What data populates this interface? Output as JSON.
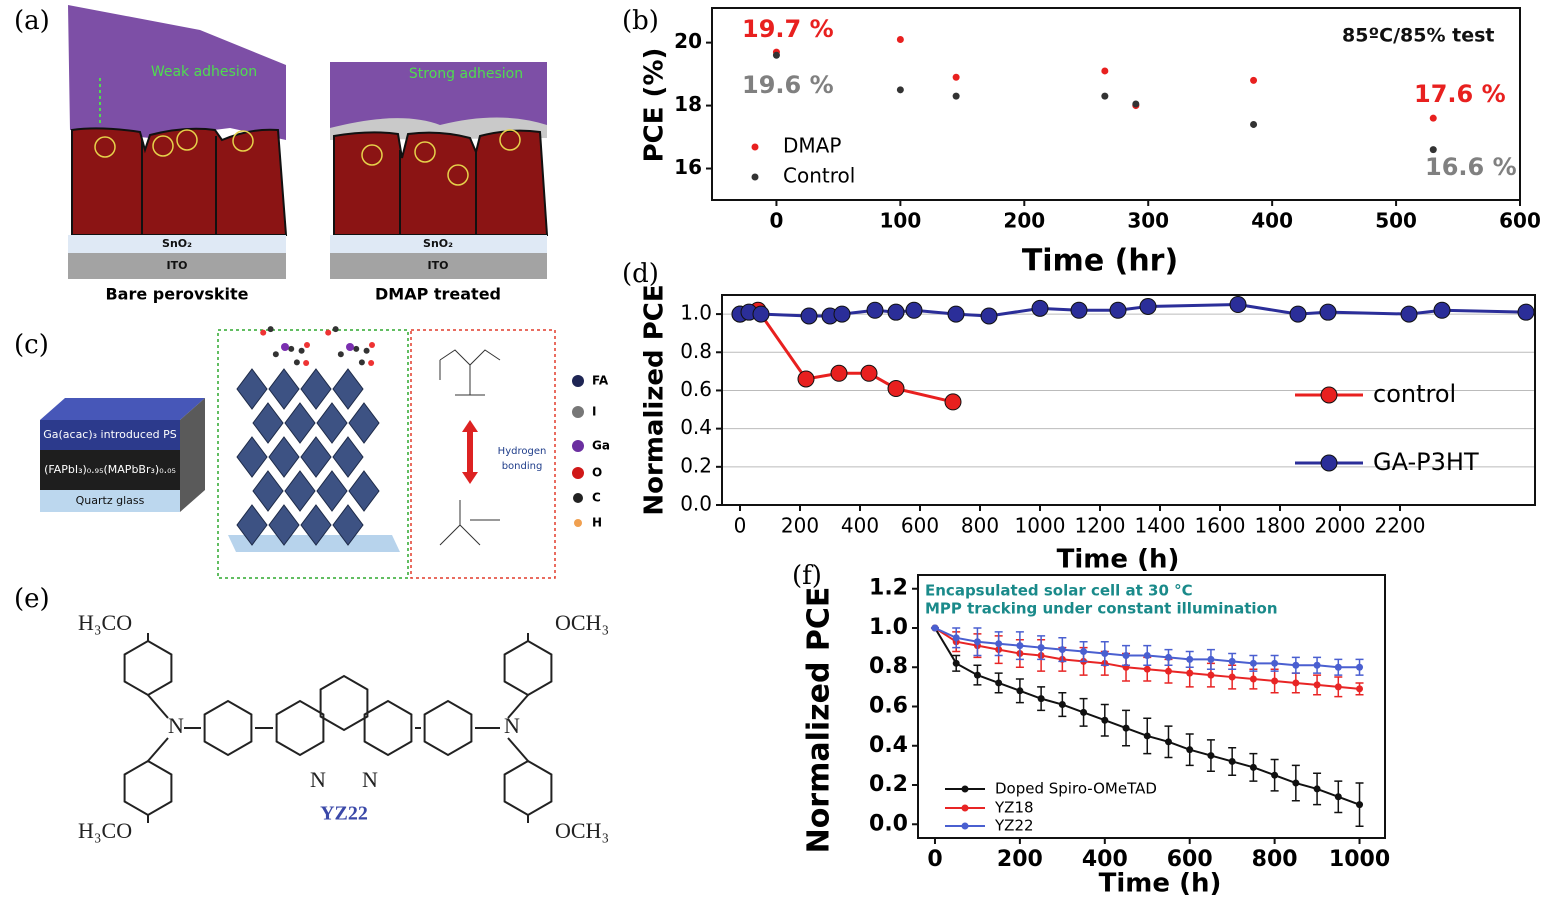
{
  "panel_labels": [
    "(a)",
    "(b)",
    "(c)",
    "(d)",
    "(e)",
    "(f)"
  ],
  "panel_a": {
    "weak": "Weak adhesion",
    "strong": "Strong adhesion",
    "sno2": "SnO₂",
    "ito": "ITO",
    "left_caption": "Bare perovskite",
    "right_caption": "DMAP treated"
  },
  "panel_c": {
    "layers": [
      "Ga(acac)₃ introduced PS",
      "(FAPbI₃)₀.₉₅(MAPbBr₃)₀.₀₅",
      "Quartz glass"
    ],
    "legend": [
      "FA",
      "I",
      "Ga",
      "O",
      "C",
      "H"
    ],
    "bond": [
      "Hydrogen",
      "bonding"
    ]
  },
  "panel_e": {
    "groups": [
      "H₃CO",
      "H₃CO",
      "OCH₃",
      "OCH₃"
    ],
    "n_atoms": [
      "N",
      "N",
      "N",
      "N"
    ],
    "name": "YZ22"
  },
  "chart_data": [
    {
      "type": "scatter",
      "x_label": "Time (hr)",
      "y_label": "PCE (%)",
      "x": [
        0,
        100,
        145,
        265,
        290,
        385,
        530
      ],
      "series": [
        {
          "name": "DMAP",
          "color": "#e8201f",
          "values": [
            19.7,
            20.1,
            18.9,
            19.1,
            18.0,
            18.8,
            17.6
          ]
        },
        {
          "name": "Control",
          "color": "#333333",
          "values": [
            19.6,
            18.5,
            18.3,
            18.3,
            18.05,
            17.4,
            16.6
          ]
        }
      ],
      "xlim": [
        -52,
        600
      ],
      "xticks": [
        0,
        100,
        200,
        300,
        400,
        500,
        600
      ],
      "ylim": [
        15,
        21.1
      ],
      "yticks": [
        16,
        18,
        20
      ],
      "grid": false,
      "legend": "lower-left",
      "annotations": [
        {
          "text": "19.7 %",
          "color": "#e8201f"
        },
        {
          "text": "19.6 %",
          "color": "#808080"
        },
        {
          "text": "17.6 %",
          "color": "#e8201f"
        },
        {
          "text": "16.6 %",
          "color": "#808080"
        },
        {
          "text": "85ºC/85%  test",
          "color": "#111111"
        }
      ]
    },
    {
      "type": "line",
      "x_label": "Time (h)",
      "y_label": "Normalized PCE",
      "series": [
        {
          "name": "control",
          "color": "#e8201f",
          "x": [
            0,
            60,
            220,
            330,
            430,
            520,
            710
          ],
          "values": [
            1.0,
            1.02,
            0.66,
            0.69,
            0.69,
            0.61,
            0.54
          ]
        },
        {
          "name": "GA-P3HT",
          "color": "#2b2e99",
          "x": [
            0,
            30,
            70,
            230,
            300,
            340,
            450,
            520,
            580,
            720,
            830,
            1000,
            1130,
            1260,
            1360,
            1660,
            1860,
            1960,
            2230,
            2340,
            2620
          ],
          "values": [
            1.0,
            1.01,
            1.0,
            0.99,
            0.99,
            1.0,
            1.02,
            1.01,
            1.02,
            1.0,
            0.99,
            1.03,
            1.02,
            1.02,
            1.04,
            1.05,
            1.0,
            1.01,
            1.0,
            1.02,
            1.01
          ]
        }
      ],
      "xlim": [
        -60,
        2650
      ],
      "xticks": [
        0,
        200,
        400,
        600,
        800,
        1000,
        1200,
        1400,
        1600,
        1800,
        2000,
        2200
      ],
      "ylim": [
        0,
        1.1
      ],
      "yticks": [
        {
          "value": 0,
          "label": "0.0"
        },
        0.2,
        0.4,
        0.6,
        0.8,
        {
          "value": 1,
          "label": "1.0"
        }
      ],
      "grid": true,
      "legend": "right"
    },
    {
      "type": "line",
      "x_label": "Time (h)",
      "y_label": "Normalized PCE",
      "x": [
        0,
        50,
        100,
        150,
        200,
        250,
        300,
        350,
        400,
        450,
        500,
        550,
        600,
        650,
        700,
        750,
        800,
        850,
        900,
        950,
        1000
      ],
      "series": [
        {
          "name": "Doped Spiro-OMeTAD",
          "color": "#111111",
          "values": [
            1.0,
            0.82,
            0.76,
            0.72,
            0.68,
            0.64,
            0.61,
            0.57,
            0.53,
            0.49,
            0.45,
            0.42,
            0.38,
            0.35,
            0.32,
            0.29,
            0.25,
            0.21,
            0.18,
            0.14,
            0.1
          ],
          "errors": [
            0,
            0.04,
            0.05,
            0.05,
            0.06,
            0.06,
            0.06,
            0.07,
            0.08,
            0.09,
            0.09,
            0.08,
            0.08,
            0.08,
            0.07,
            0.07,
            0.08,
            0.09,
            0.08,
            0.08,
            0.11
          ]
        },
        {
          "name": "YZ18",
          "color": "#e82525",
          "values": [
            1.0,
            0.93,
            0.91,
            0.89,
            0.87,
            0.86,
            0.84,
            0.83,
            0.82,
            0.8,
            0.79,
            0.78,
            0.77,
            0.76,
            0.75,
            0.74,
            0.73,
            0.72,
            0.71,
            0.7,
            0.69
          ],
          "errors": [
            0,
            0.05,
            0.06,
            0.07,
            0.07,
            0.08,
            0.06,
            0.07,
            0.06,
            0.07,
            0.06,
            0.06,
            0.07,
            0.06,
            0.06,
            0.05,
            0.06,
            0.05,
            0.05,
            0.05,
            0.03
          ]
        },
        {
          "name": "YZ22",
          "color": "#4a5fd0",
          "values": [
            1.0,
            0.95,
            0.93,
            0.92,
            0.91,
            0.9,
            0.89,
            0.88,
            0.87,
            0.86,
            0.86,
            0.85,
            0.84,
            0.84,
            0.83,
            0.82,
            0.82,
            0.81,
            0.81,
            0.8,
            0.8
          ],
          "errors": [
            0,
            0.05,
            0.07,
            0.06,
            0.07,
            0.06,
            0.06,
            0.05,
            0.06,
            0.05,
            0.05,
            0.04,
            0.04,
            0.05,
            0.04,
            0.04,
            0.04,
            0.04,
            0.04,
            0.04,
            0.04
          ]
        }
      ],
      "xlim": [
        -40,
        1060
      ],
      "xticks": [
        0,
        200,
        400,
        600,
        800,
        1000
      ],
      "ylim": [
        -0.07,
        1.27
      ],
      "yticks": [
        {
          "value": 0,
          "label": "0.0"
        },
        0.2,
        0.4,
        0.6,
        0.8,
        {
          "value": 1,
          "label": "1.0"
        },
        1.2
      ],
      "grid": false,
      "legend": "lower-left",
      "annotations": [
        {
          "text": "Encapsulated solar cell at 30 °C",
          "color": "#1a8a8a"
        },
        {
          "text": "MPP tracking under constant illumination",
          "color": "#1a8a8a"
        }
      ]
    }
  ]
}
